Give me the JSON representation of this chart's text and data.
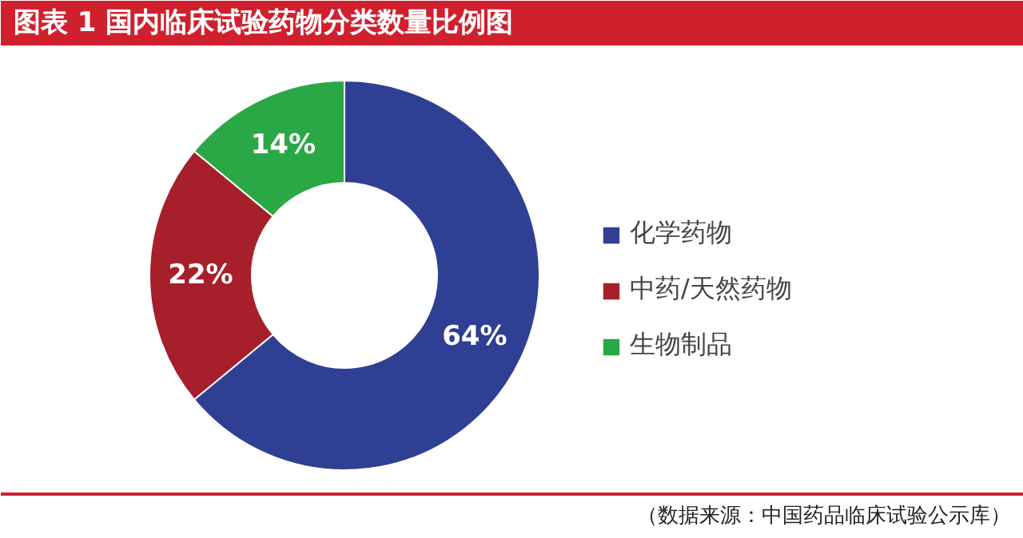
{
  "chart_data": {
    "type": "donut",
    "title": "图表 1   国内临床试验药物分类数量比例图",
    "categories": [
      "化学药物",
      "中药/天然药物",
      "生物制品"
    ],
    "values": [
      64,
      22,
      14
    ],
    "colors": [
      "#2f3f93",
      "#a61f2b",
      "#2aa845"
    ],
    "value_labels": [
      "64%",
      "22%",
      "14%"
    ],
    "legend": "right",
    "annotations": [
      "（数据来源：中国药品临床试验公示库）"
    ]
  }
}
